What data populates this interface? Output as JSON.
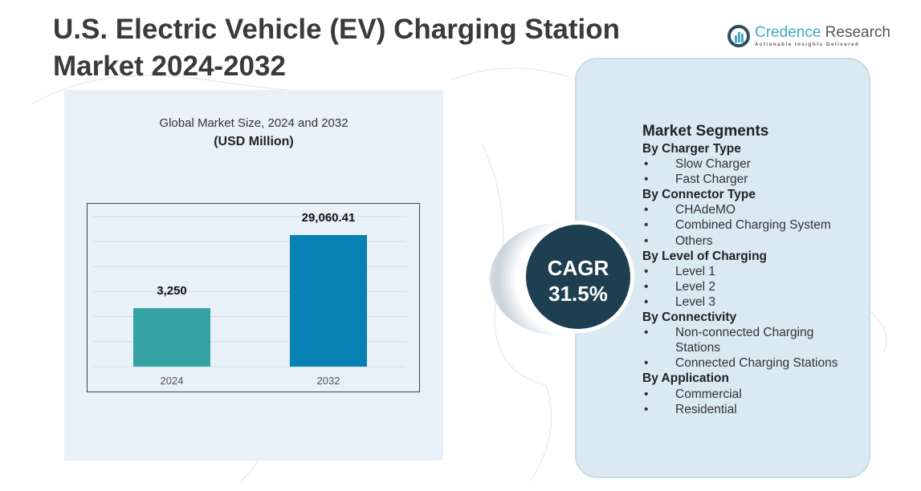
{
  "header": {
    "title_line1": "U.S. Electric Vehicle (EV) Charging Station",
    "title_line2": "Market  2024-2032"
  },
  "logo": {
    "name_part1": "Credence",
    "name_part2": " Research",
    "tagline": "Actionable Insights Delivered"
  },
  "chart_data": {
    "type": "bar",
    "title": "Global Market Size, 2024 and 2032",
    "subtitle": "(USD Million)",
    "categories": [
      "2024",
      "2032"
    ],
    "values": [
      3250,
      29060.41
    ],
    "value_labels": [
      "3,250",
      "29,060.41"
    ],
    "colors": [
      "#35a3a3",
      "#0780b4"
    ],
    "xlabel": "",
    "ylabel": "",
    "grid": true
  },
  "cagr": {
    "label": "CAGR",
    "value": "31.5%"
  },
  "segments": {
    "title": "Market Segments",
    "groups": [
      {
        "name": "By Charger Type",
        "items": [
          "Slow Charger",
          "Fast Charger"
        ]
      },
      {
        "name": "By Connector Type",
        "items": [
          "CHAdeMO",
          "Combined Charging System",
          "Others"
        ]
      },
      {
        "name": "By Level of Charging",
        "items": [
          "Level 1",
          "Level 2",
          "Level 3"
        ]
      },
      {
        "name": "By Connectivity",
        "items": [
          "Non-connected Charging Stations",
          "Connected Charging Stations"
        ]
      },
      {
        "name": "By Application",
        "items": [
          "Commercial",
          "Residential"
        ]
      }
    ]
  }
}
